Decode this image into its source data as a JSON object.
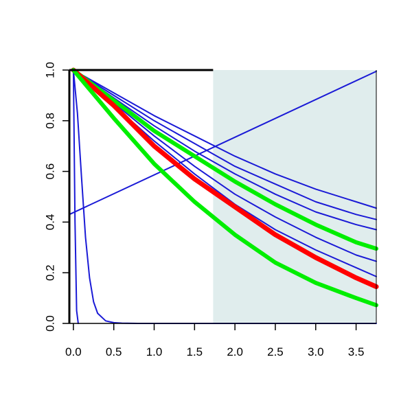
{
  "chart_data": {
    "type": "line",
    "title": "",
    "xlabel": "",
    "ylabel": "",
    "xlim": [
      -0.05,
      3.75
    ],
    "ylim": [
      0.0,
      1.0
    ],
    "x_ticks": [
      0.0,
      0.5,
      1.0,
      1.5,
      2.0,
      2.5,
      3.0,
      3.5
    ],
    "x_tick_labels": [
      "0.0",
      "0.5",
      "1.0",
      "1.5",
      "2.0",
      "2.5",
      "3.0",
      "3.5"
    ],
    "y_ticks": [
      0.0,
      0.2,
      0.4,
      0.6,
      0.8,
      1.0
    ],
    "y_tick_labels": [
      "0.0",
      "0.2",
      "0.4",
      "0.6",
      "0.8",
      "1.0"
    ],
    "grid": false,
    "legend": "none",
    "shaded_region": {
      "x_from": 1.73,
      "x_to": 3.75,
      "color": "#e0eded"
    },
    "colors": {
      "blue": "#1a1ad6",
      "red": "#ff0000",
      "green": "#00ee00",
      "axis": "#000000"
    },
    "series": [
      {
        "color": "#1a1ad6",
        "width": 2,
        "x": [
          0.0,
          0.02,
          0.04,
          0.06
        ],
        "y": [
          1.0,
          0.4,
          0.05,
          0.0
        ]
      },
      {
        "color": "#1a1ad6",
        "width": 2,
        "x": [
          0.0,
          0.05,
          0.1,
          0.15,
          0.2,
          0.25,
          0.3,
          0.4,
          0.5,
          0.6,
          0.8,
          3.75
        ],
        "y": [
          1.0,
          0.83,
          0.58,
          0.34,
          0.18,
          0.085,
          0.04,
          0.01,
          0.003,
          0.001,
          0.0,
          0.0
        ]
      },
      {
        "color": "#1a1ad6",
        "width": 2,
        "x": [
          -0.05,
          3.75
        ],
        "y": [
          0.43,
          0.995
        ]
      },
      {
        "color": "#1a1ad6",
        "width": 2,
        "x": [
          0.0,
          0.5,
          1.0,
          1.5,
          2.0,
          2.5,
          3.0,
          3.5,
          3.75
        ],
        "y": [
          1.0,
          0.91,
          0.82,
          0.74,
          0.66,
          0.59,
          0.53,
          0.48,
          0.455
        ]
      },
      {
        "color": "#1a1ad6",
        "width": 2,
        "x": [
          0.0,
          0.5,
          1.0,
          1.5,
          2.0,
          2.5,
          3.0,
          3.5,
          3.75
        ],
        "y": [
          1.0,
          0.9,
          0.8,
          0.71,
          0.62,
          0.55,
          0.48,
          0.43,
          0.41
        ]
      },
      {
        "color": "#1a1ad6",
        "width": 2,
        "x": [
          0.0,
          0.5,
          1.0,
          1.5,
          2.0,
          2.5,
          3.0,
          3.5,
          3.75
        ],
        "y": [
          1.0,
          0.89,
          0.78,
          0.68,
          0.59,
          0.51,
          0.44,
          0.39,
          0.37
        ]
      },
      {
        "color": "#1a1ad6",
        "width": 2,
        "x": [
          0.0,
          0.5,
          1.0,
          1.5,
          2.0,
          2.5,
          3.0,
          3.5,
          3.75
        ],
        "y": [
          1.0,
          0.87,
          0.74,
          0.62,
          0.51,
          0.42,
          0.34,
          0.27,
          0.245
        ]
      },
      {
        "color": "#1a1ad6",
        "width": 2,
        "x": [
          0.0,
          0.5,
          1.0,
          1.5,
          2.0,
          2.5,
          3.0,
          3.5,
          3.75
        ],
        "y": [
          1.0,
          0.86,
          0.72,
          0.59,
          0.47,
          0.37,
          0.29,
          0.22,
          0.185
        ]
      },
      {
        "color": "#00ee00",
        "width": 6,
        "x": [
          0.0,
          0.5,
          1.0,
          1.5,
          2.0,
          2.5,
          3.0,
          3.5,
          3.75
        ],
        "y": [
          1.0,
          0.88,
          0.76,
          0.66,
          0.56,
          0.47,
          0.39,
          0.32,
          0.295
        ]
      },
      {
        "color": "#ff0000",
        "width": 7,
        "x": [
          0.0,
          0.5,
          1.0,
          1.5,
          2.0,
          2.5,
          3.0,
          3.5,
          3.75
        ],
        "y": [
          1.0,
          0.86,
          0.7,
          0.57,
          0.46,
          0.35,
          0.26,
          0.18,
          0.145
        ]
      },
      {
        "color": "#00ee00",
        "width": 6,
        "x": [
          0.0,
          0.5,
          1.0,
          1.5,
          2.0,
          2.5,
          3.0,
          3.5,
          3.75
        ],
        "y": [
          1.0,
          0.81,
          0.63,
          0.48,
          0.35,
          0.24,
          0.16,
          0.1,
          0.072
        ]
      }
    ]
  }
}
